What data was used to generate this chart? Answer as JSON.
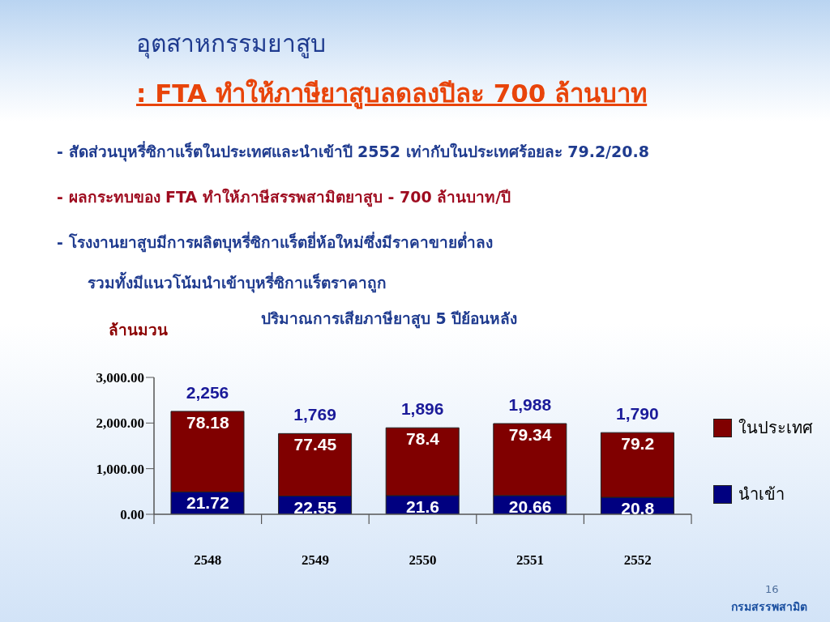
{
  "chart_data": {
    "type": "bar",
    "title": "อุตสาหกรรมยาสูบ",
    "subtitle": ": FTA ทำให้ภาษียาสูบลดลงปีละ 700 ล้านบาท",
    "ylabel": "ล้านมวน",
    "annotations": [
      "- สัดส่วนบุหรี่ซิกาแร็ตในประเทศและนำเข้าปี 2552 เท่ากับในประเทศร้อยละ 79.2/20.8",
      "- ผลกระทบของ  FTA ทำให้ภาษีสรรพสามิตยาสูบ - 700 ล้านบาท/ปี",
      "- โรงงานยาสูบมีการผลิตบุหรี่ซิกาแร็ตยี่ห้อใหม่ซึ่งมีราคาขายต่ำลง",
      "รวมทั้งมีแนวโน้มนำเข้าบุหรี่ซิกาแร็ตราคาถูก",
      "ปริมาณการเสียภาษียาสูบ 5 ปีย้อนหลัง",
      "16",
      "กรมสรรพสามิต",
      {
        "text": "21.72",
        "x": "2548",
        "y": 490
      },
      {
        "text": "22.55",
        "x": "2549",
        "y": 399
      },
      {
        "text": "21.6",
        "x": "2550",
        "y": 410
      },
      {
        "text": "20.66",
        "x": "2551",
        "y": 411
      },
      {
        "text": "20.8",
        "x": "2552",
        "y": 372
      },
      {
        "text": "78.18",
        "x": "2548",
        "y": 2256
      },
      {
        "text": "77.45",
        "x": "2549",
        "y": 1769
      },
      {
        "text": "78.4",
        "x": "2550",
        "y": 1896
      },
      {
        "text": "79.34",
        "x": "2551",
        "y": 1988
      },
      {
        "text": "79.2",
        "x": "2552",
        "y": 1790
      }
    ],
    "categories": [
      "2548",
      "2549",
      "2550",
      "2551",
      "2552"
    ],
    "series": [
      {
        "name": "นำเข้า",
        "color": "#000080",
        "values": [
          490,
          399,
          410,
          411,
          372
        ]
      },
      {
        "name": "ในประเทศ",
        "color": "#800000",
        "values": [
          1766,
          1370,
          1486,
          1577,
          1418
        ]
      }
    ],
    "stacked": true,
    "totals": [
      "2,256",
      "1,769",
      "1,896",
      "1,988",
      "1,790"
    ],
    "ylim": [
      0,
      3000
    ],
    "yticks": [
      {
        "value": 0,
        "label": "0.00"
      },
      {
        "value": 1000,
        "label": "1,000.00"
      },
      {
        "value": 2000,
        "label": "2,000.00"
      },
      {
        "value": 3000,
        "label": "3,000.00"
      }
    ],
    "grid": false,
    "legend": "right"
  }
}
